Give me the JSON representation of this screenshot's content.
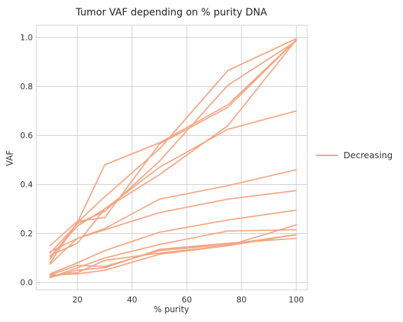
{
  "chart_data": {
    "type": "line",
    "title": "Tumor VAF depending on % purity DNA",
    "xlabel": "% purity",
    "ylabel": "VAF",
    "x": [
      10,
      20,
      30,
      50,
      75,
      100
    ],
    "xlim": [
      5,
      104
    ],
    "ylim": [
      -0.03,
      1.05
    ],
    "xticks": [
      20,
      40,
      60,
      80,
      100
    ],
    "yticks": [
      0.0,
      0.2,
      0.4,
      0.6,
      0.8,
      1.0
    ],
    "xtick_labels": [
      "20",
      "40",
      "60",
      "80",
      "100"
    ],
    "ytick_labels": [
      "0.0",
      "0.2",
      "0.4",
      "0.6",
      "0.8",
      "1.0"
    ],
    "grid": true,
    "legend_position": "right",
    "legend_label": "Decreasing",
    "line_color": "#f4a582",
    "series": [
      {
        "values": [
          0.08,
          0.245,
          0.48,
          0.57,
          0.725,
          0.99
        ]
      },
      {
        "values": [
          0.095,
          0.245,
          0.35,
          0.545,
          0.865,
          0.995
        ]
      },
      {
        "values": [
          0.12,
          0.24,
          0.29,
          0.495,
          0.805,
          0.985
        ]
      },
      {
        "values": [
          0.105,
          0.23,
          0.3,
          0.44,
          0.64,
          0.99
        ]
      },
      {
        "values": [
          0.15,
          0.25,
          0.265,
          0.565,
          0.715,
          0.99
        ]
      },
      {
        "values": [
          0.11,
          0.16,
          0.3,
          0.47,
          0.625,
          0.7
        ]
      },
      {
        "values": [
          0.075,
          0.18,
          0.215,
          0.285,
          0.34,
          0.375
        ]
      },
      {
        "values": [
          0.125,
          0.18,
          0.22,
          0.34,
          0.395,
          0.46
        ]
      },
      {
        "values": [
          0.035,
          0.08,
          0.13,
          0.205,
          0.255,
          0.295
        ]
      },
      {
        "values": [
          0.02,
          0.06,
          0.1,
          0.155,
          0.21,
          0.215
        ]
      },
      {
        "values": [
          0.025,
          0.04,
          0.09,
          0.12,
          0.15,
          0.235
        ]
      },
      {
        "values": [
          0.03,
          0.07,
          0.065,
          0.13,
          0.155,
          0.195
        ]
      },
      {
        "values": [
          0.02,
          0.05,
          0.06,
          0.135,
          0.16,
          0.18
        ]
      },
      {
        "values": [
          0.03,
          0.035,
          0.05,
          0.115,
          0.15,
          0.195
        ]
      }
    ]
  }
}
